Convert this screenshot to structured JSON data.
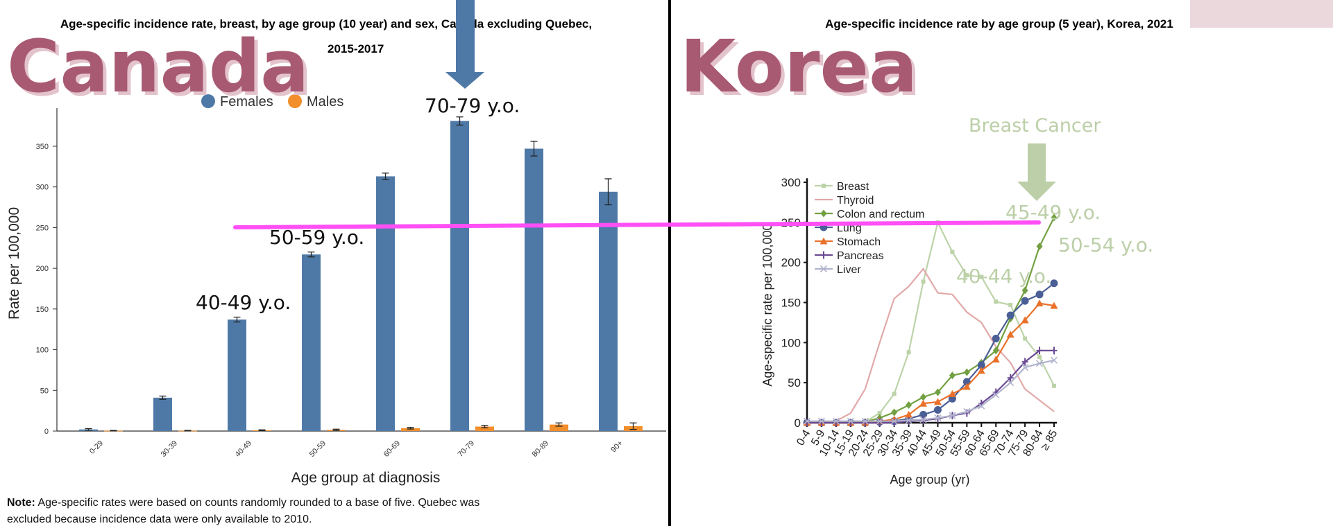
{
  "overlay": {
    "canada_label": "Canada",
    "korea_label": "Korea",
    "breast_cancer_label": "Breast Cancer",
    "canada_annotations": [
      "70-79 y.o.",
      "50-59 y.o.",
      "40-49 y.o."
    ],
    "korea_annotations": [
      "45-49 y.o.",
      "50-54 y.o.",
      "40-44 y.o."
    ],
    "colors": {
      "title_text": "#a85a72",
      "arrow_blue": "#4e79a7",
      "arrow_green": "#bccfa8",
      "guide_line": "#ff4ff5",
      "corner_block": "#ead8dd"
    }
  },
  "chart_data": [
    {
      "type": "bar",
      "title": "Age-specific incidence rate, breast, by age group (10 year) and sex, Canada excluding Quebec,",
      "subtitle": "2015-2017",
      "xlabel": "Age group at diagnosis",
      "ylabel": "Rate per 100,000",
      "ylim": [
        0,
        390
      ],
      "yticks": [
        0,
        50,
        100,
        150,
        200,
        250,
        300,
        350
      ],
      "categories": [
        "0-29",
        "30-39",
        "40-49",
        "50-59",
        "60-69",
        "70-79",
        "80-89",
        "90+"
      ],
      "legend_position": "top-center",
      "series": [
        {
          "name": "Females",
          "color": "#4e79a7",
          "values": [
            2,
            41,
            137,
            217,
            313,
            381,
            347,
            294
          ],
          "error": [
            1,
            2,
            3,
            3,
            4,
            5,
            9,
            16
          ]
        },
        {
          "name": "Males",
          "color": "#f28e2b",
          "values": [
            0.5,
            0.5,
            1,
            1.5,
            3.5,
            5.5,
            8,
            6
          ],
          "error": [
            0.3,
            0.3,
            0.5,
            0.8,
            1,
            1.5,
            2,
            4
          ]
        }
      ],
      "note_label": "Note:",
      "note_line1": " Age-specific rates were based on counts randomly rounded to a base of five. Quebec was",
      "note_line2": "excluded because incidence data were only available to 2010."
    },
    {
      "type": "line",
      "title": "Age-specific incidence rate by age group (5 year), Korea, 2021",
      "xlabel": "Age group (yr)",
      "ylabel": "Age-specific rate per 100,000",
      "ylim": [
        0,
        300
      ],
      "yticks": [
        0,
        50,
        100,
        150,
        200,
        250,
        300
      ],
      "legend_position": "top-left",
      "x": [
        "0-4",
        "5-9",
        "10-14",
        "15-19",
        "20-24",
        "25-29",
        "30-34",
        "35-39",
        "40-44",
        "45-49",
        "50-54",
        "55-59",
        "60-64",
        "65-69",
        "70-74",
        "75-79",
        "80-84",
        "≥ 85"
      ],
      "series": [
        {
          "name": "Breast",
          "color": "#bcd3a8",
          "marker": "square",
          "values": [
            0,
            0,
            0,
            0,
            1,
            12,
            36,
            88,
            176,
            250,
            213,
            184,
            182,
            151,
            147,
            105,
            82,
            46
          ]
        },
        {
          "name": "Thyroid",
          "color": "#e2a9a9",
          "marker": "none",
          "values": [
            0,
            0,
            2,
            12,
            42,
            100,
            155,
            170,
            192,
            162,
            160,
            138,
            125,
            95,
            75,
            42,
            28,
            14
          ]
        },
        {
          "name": "Colon and rectum",
          "color": "#72a041",
          "marker": "diamond",
          "values": [
            0,
            0,
            0,
            0,
            1,
            6,
            13,
            22,
            32,
            38,
            59,
            63,
            75,
            90,
            130,
            165,
            220,
            256
          ]
        },
        {
          "name": "Lung",
          "color": "#4a5f96",
          "marker": "circle",
          "values": [
            0,
            0,
            0,
            0,
            0,
            1,
            2,
            5,
            10,
            16,
            30,
            51,
            72,
            105,
            134,
            152,
            160,
            174
          ]
        },
        {
          "name": "Stomach",
          "color": "#e9712a",
          "marker": "triangle",
          "values": [
            0,
            0,
            0,
            0,
            0,
            2,
            4,
            10,
            24,
            26,
            36,
            45,
            65,
            79,
            110,
            128,
            149,
            146
          ]
        },
        {
          "name": "Pancreas",
          "color": "#6b4a94",
          "marker": "plus",
          "values": [
            0,
            0,
            0,
            0,
            0,
            0,
            0,
            2,
            3,
            5,
            9,
            12,
            24,
            38,
            56,
            76,
            90,
            90
          ]
        },
        {
          "name": "Liver",
          "color": "#b0b3cc",
          "marker": "x",
          "values": [
            2,
            2,
            2,
            2,
            2,
            2,
            2,
            3,
            4,
            6,
            9,
            14,
            21,
            35,
            50,
            69,
            74,
            78
          ]
        }
      ]
    }
  ]
}
